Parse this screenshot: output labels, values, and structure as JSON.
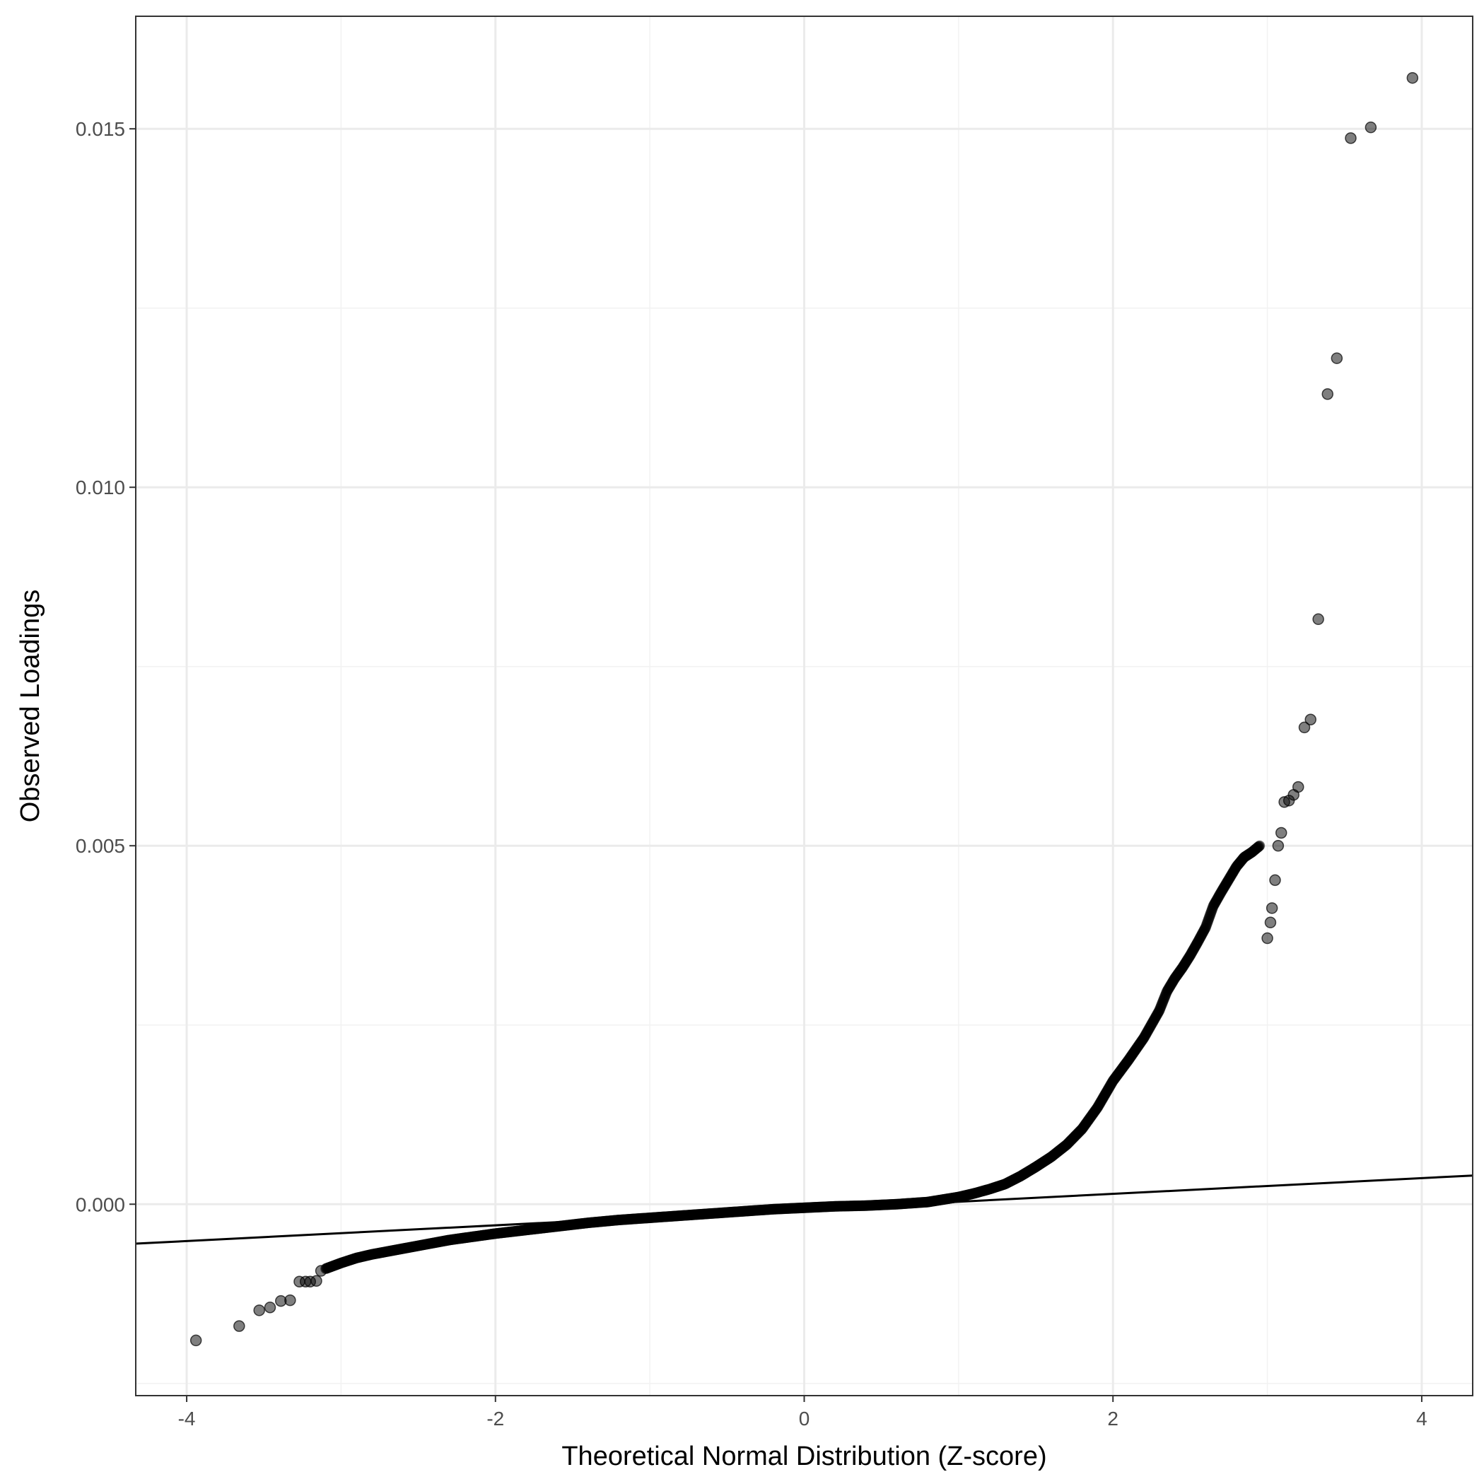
{
  "chart_data": {
    "type": "scatter",
    "title": "",
    "xlabel": "Theoretical Normal Distribution (Z-score)",
    "ylabel": "Observed Loadings",
    "xlim": [
      -4.33,
      4.33
    ],
    "ylim": [
      -0.00267,
      0.01657
    ],
    "x_ticks": [
      {
        "value": -4,
        "label": "-4"
      },
      {
        "value": -2,
        "label": "-2"
      },
      {
        "value": 0,
        "label": "0"
      },
      {
        "value": 2,
        "label": "2"
      },
      {
        "value": 4,
        "label": "4"
      }
    ],
    "y_ticks": [
      {
        "value": 0.0,
        "label": "0.000"
      },
      {
        "value": 0.005,
        "label": "0.005"
      },
      {
        "value": 0.01,
        "label": "0.010"
      },
      {
        "value": 0.015,
        "label": "0.015"
      }
    ],
    "x_minor_gridlines": [
      -3,
      -1,
      1,
      3
    ],
    "y_minor_gridlines": [
      -0.0025,
      0.0025,
      0.0075,
      0.0125
    ],
    "grid": true,
    "legend": "none",
    "colors": {
      "points": "#000000",
      "point_opacity": 0.5,
      "reference_line": "#000000",
      "grid_major": "#ebebeb",
      "grid_minor": "#f2f2f2",
      "panel_border": "#333333",
      "tick_text": "#4d4d4d"
    },
    "reference_line": {
      "x": [
        -4.33,
        4.33
      ],
      "y": [
        -0.00055,
        0.0004
      ]
    },
    "outlier_points": [
      {
        "x": -3.94,
        "y": -0.0019
      },
      {
        "x": -3.66,
        "y": -0.0017
      },
      {
        "x": -3.53,
        "y": -0.00148
      },
      {
        "x": -3.46,
        "y": -0.00144
      },
      {
        "x": -3.39,
        "y": -0.00135
      },
      {
        "x": -3.33,
        "y": -0.00134
      },
      {
        "x": -3.27,
        "y": -0.00108
      },
      {
        "x": -3.23,
        "y": -0.00108
      },
      {
        "x": -3.2,
        "y": -0.00108
      },
      {
        "x": -3.16,
        "y": -0.00107
      },
      {
        "x": -3.13,
        "y": -0.00093
      },
      {
        "x": 3.0,
        "y": 0.00371
      },
      {
        "x": 3.02,
        "y": 0.00393
      },
      {
        "x": 3.03,
        "y": 0.00413
      },
      {
        "x": 3.05,
        "y": 0.00452
      },
      {
        "x": 3.07,
        "y": 0.005
      },
      {
        "x": 3.09,
        "y": 0.00518
      },
      {
        "x": 3.11,
        "y": 0.00561
      },
      {
        "x": 3.14,
        "y": 0.00563
      },
      {
        "x": 3.17,
        "y": 0.00571
      },
      {
        "x": 3.2,
        "y": 0.00582
      },
      {
        "x": 3.24,
        "y": 0.00665
      },
      {
        "x": 3.28,
        "y": 0.00676
      },
      {
        "x": 3.33,
        "y": 0.00816
      },
      {
        "x": 3.39,
        "y": 0.0113
      },
      {
        "x": 3.45,
        "y": 0.0118
      },
      {
        "x": 3.54,
        "y": 0.01487
      },
      {
        "x": 3.67,
        "y": 0.01502
      },
      {
        "x": 3.94,
        "y": 0.01571
      }
    ],
    "curve_points": [
      {
        "x": -3.1,
        "y": -0.0009
      },
      {
        "x": -3.0,
        "y": -0.00082
      },
      {
        "x": -2.9,
        "y": -0.00075
      },
      {
        "x": -2.8,
        "y": -0.0007
      },
      {
        "x": -2.7,
        "y": -0.00066
      },
      {
        "x": -2.6,
        "y": -0.00062
      },
      {
        "x": -2.5,
        "y": -0.00058
      },
      {
        "x": -2.4,
        "y": -0.00054
      },
      {
        "x": -2.3,
        "y": -0.0005
      },
      {
        "x": -2.2,
        "y": -0.00047
      },
      {
        "x": -2.1,
        "y": -0.00044
      },
      {
        "x": -2.0,
        "y": -0.00041
      },
      {
        "x": -1.8,
        "y": -0.00036
      },
      {
        "x": -1.6,
        "y": -0.00031
      },
      {
        "x": -1.4,
        "y": -0.00026
      },
      {
        "x": -1.2,
        "y": -0.00022
      },
      {
        "x": -1.0,
        "y": -0.00019
      },
      {
        "x": -0.8,
        "y": -0.00016
      },
      {
        "x": -0.6,
        "y": -0.00013
      },
      {
        "x": -0.4,
        "y": -0.0001
      },
      {
        "x": -0.2,
        "y": -7e-05
      },
      {
        "x": 0.0,
        "y": -5e-05
      },
      {
        "x": 0.2,
        "y": -3e-05
      },
      {
        "x": 0.4,
        "y": -2e-05
      },
      {
        "x": 0.6,
        "y": 0.0
      },
      {
        "x": 0.8,
        "y": 3e-05
      },
      {
        "x": 1.0,
        "y": 0.0001
      },
      {
        "x": 1.1,
        "y": 0.00015
      },
      {
        "x": 1.2,
        "y": 0.00021
      },
      {
        "x": 1.3,
        "y": 0.00028
      },
      {
        "x": 1.4,
        "y": 0.00039
      },
      {
        "x": 1.5,
        "y": 0.00052
      },
      {
        "x": 1.6,
        "y": 0.00066
      },
      {
        "x": 1.7,
        "y": 0.00083
      },
      {
        "x": 1.8,
        "y": 0.00105
      },
      {
        "x": 1.9,
        "y": 0.00135
      },
      {
        "x": 2.0,
        "y": 0.00172
      },
      {
        "x": 2.1,
        "y": 0.00201
      },
      {
        "x": 2.2,
        "y": 0.00232
      },
      {
        "x": 2.3,
        "y": 0.0027
      },
      {
        "x": 2.35,
        "y": 0.00297
      },
      {
        "x": 2.4,
        "y": 0.00315
      },
      {
        "x": 2.45,
        "y": 0.0033
      },
      {
        "x": 2.5,
        "y": 0.00347
      },
      {
        "x": 2.55,
        "y": 0.00366
      },
      {
        "x": 2.6,
        "y": 0.00386
      },
      {
        "x": 2.65,
        "y": 0.00416
      },
      {
        "x": 2.7,
        "y": 0.00435
      },
      {
        "x": 2.75,
        "y": 0.00453
      },
      {
        "x": 2.8,
        "y": 0.00471
      },
      {
        "x": 2.85,
        "y": 0.00484
      },
      {
        "x": 2.9,
        "y": 0.00491
      },
      {
        "x": 2.95,
        "y": 0.005
      }
    ]
  }
}
